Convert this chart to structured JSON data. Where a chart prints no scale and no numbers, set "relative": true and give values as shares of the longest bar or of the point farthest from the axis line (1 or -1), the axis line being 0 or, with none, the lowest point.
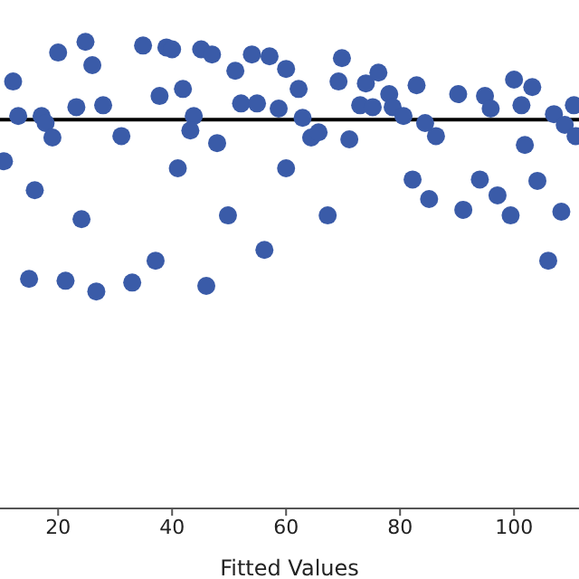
{
  "chart_data": {
    "type": "scatter",
    "xlabel": "Fitted Values",
    "relative": true,
    "marker": "circle",
    "grid": false,
    "legend": false,
    "xlim": [
      9.8,
      111.4
    ],
    "xticks": [
      20,
      40,
      60,
      80,
      100
    ],
    "x": [
      12.1,
      13.0,
      10.5,
      20.0,
      24.8,
      26.0,
      17.1,
      17.8,
      19.0,
      15.9,
      23.2,
      27.9,
      31.1,
      24.1,
      14.9,
      21.3,
      26.7,
      33.0,
      37.1,
      46.0,
      34.9,
      39.0,
      40.0,
      45.1,
      47.0,
      37.8,
      41.9,
      43.8,
      43.2,
      41.0,
      47.9,
      49.8,
      51.1,
      54.0,
      57.1,
      52.1,
      54.9,
      58.7,
      56.2,
      60.0,
      60.0,
      62.2,
      62.9,
      69.8,
      69.2,
      64.4,
      65.7,
      71.1,
      67.3,
      74.0,
      76.2,
      73.0,
      75.2,
      78.1,
      78.7,
      80.6,
      82.9,
      84.4,
      86.3,
      82.2,
      85.1,
      90.2,
      91.1,
      94.0,
      94.9,
      95.9,
      97.1,
      99.4,
      100.0,
      103.2,
      101.3,
      101.9,
      104.1,
      106.0,
      108.3,
      107.0,
      108.9,
      110.5,
      110.8
    ],
    "series": [
      {
        "color": "#3a5ba8",
        "values": [
          0.915,
          0.841,
          0.744,
          0.977,
          1.0,
          0.95,
          0.841,
          0.826,
          0.795,
          0.682,
          0.86,
          0.864,
          0.798,
          0.62,
          0.492,
          0.488,
          0.465,
          0.484,
          0.531,
          0.477,
          0.992,
          0.988,
          0.984,
          0.984,
          0.973,
          0.884,
          0.899,
          0.841,
          0.81,
          0.729,
          0.783,
          0.628,
          0.938,
          0.973,
          0.969,
          0.868,
          0.868,
          0.857,
          0.554,
          0.942,
          0.729,
          0.899,
          0.837,
          0.965,
          0.915,
          0.795,
          0.806,
          0.791,
          0.628,
          0.911,
          0.934,
          0.864,
          0.86,
          0.888,
          0.86,
          0.841,
          0.907,
          0.826,
          0.798,
          0.705,
          0.663,
          0.888,
          0.64,
          0.705,
          0.884,
          0.857,
          0.671,
          0.628,
          0.919,
          0.903,
          0.864,
          0.779,
          0.702,
          0.531,
          0.636,
          0.845,
          0.822,
          0.864,
          0.798
        ]
      }
    ],
    "ref_lines": [
      {
        "axis": "y",
        "value": 0.833,
        "color": "#000000"
      }
    ]
  }
}
